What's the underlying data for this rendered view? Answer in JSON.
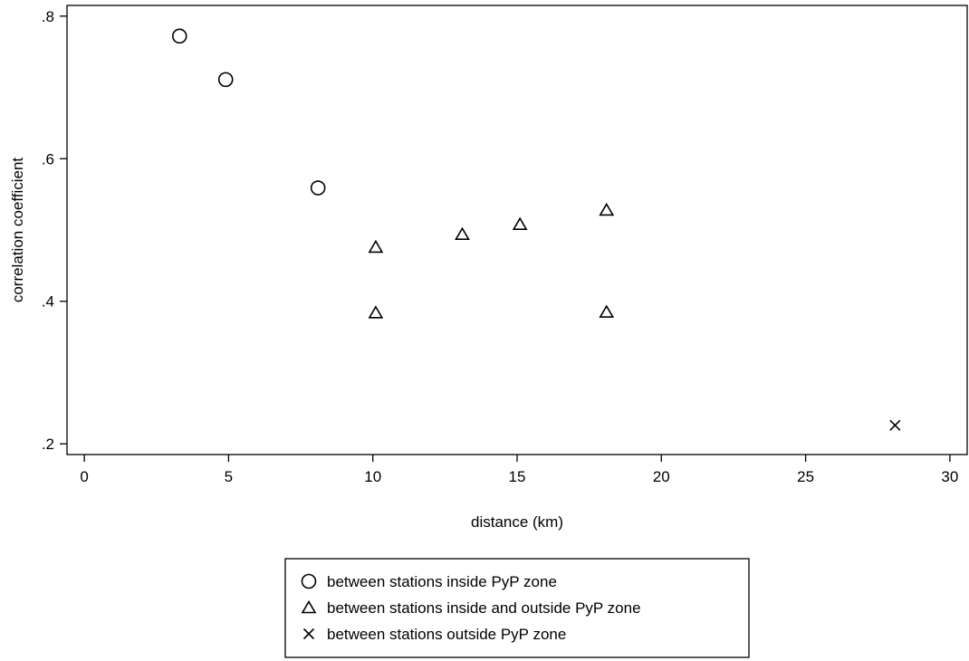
{
  "chart_data": {
    "type": "scatter",
    "title": "",
    "xlabel": "distance (km)",
    "ylabel": "correlation coefficient",
    "xlim": [
      -0.6,
      30.6
    ],
    "ylim": [
      0.185,
      0.815
    ],
    "x_ticks": [
      0,
      5,
      10,
      15,
      20,
      25,
      30
    ],
    "x_tick_labels": [
      "0",
      "5",
      "10",
      "15",
      "20",
      "25",
      "30"
    ],
    "y_ticks": [
      0.2,
      0.4,
      0.6,
      0.8
    ],
    "y_tick_labels": [
      ".2",
      ".4",
      ".6",
      ".8"
    ],
    "grid": false,
    "legend_position": "bottom",
    "series": [
      {
        "name": "between stations inside PyP zone",
        "marker": "circle",
        "points": [
          {
            "x": 3.3,
            "y": 0.772
          },
          {
            "x": 4.9,
            "y": 0.711
          },
          {
            "x": 8.1,
            "y": 0.559
          }
        ]
      },
      {
        "name": "between stations inside and outside PyP zone",
        "marker": "triangle",
        "points": [
          {
            "x": 10.1,
            "y": 0.476
          },
          {
            "x": 10.1,
            "y": 0.384
          },
          {
            "x": 13.1,
            "y": 0.494
          },
          {
            "x": 15.1,
            "y": 0.508
          },
          {
            "x": 18.1,
            "y": 0.528
          },
          {
            "x": 18.1,
            "y": 0.385
          }
        ]
      },
      {
        "name": "between stations outside PyP zone",
        "marker": "x",
        "points": [
          {
            "x": 28.1,
            "y": 0.226
          }
        ]
      }
    ]
  }
}
